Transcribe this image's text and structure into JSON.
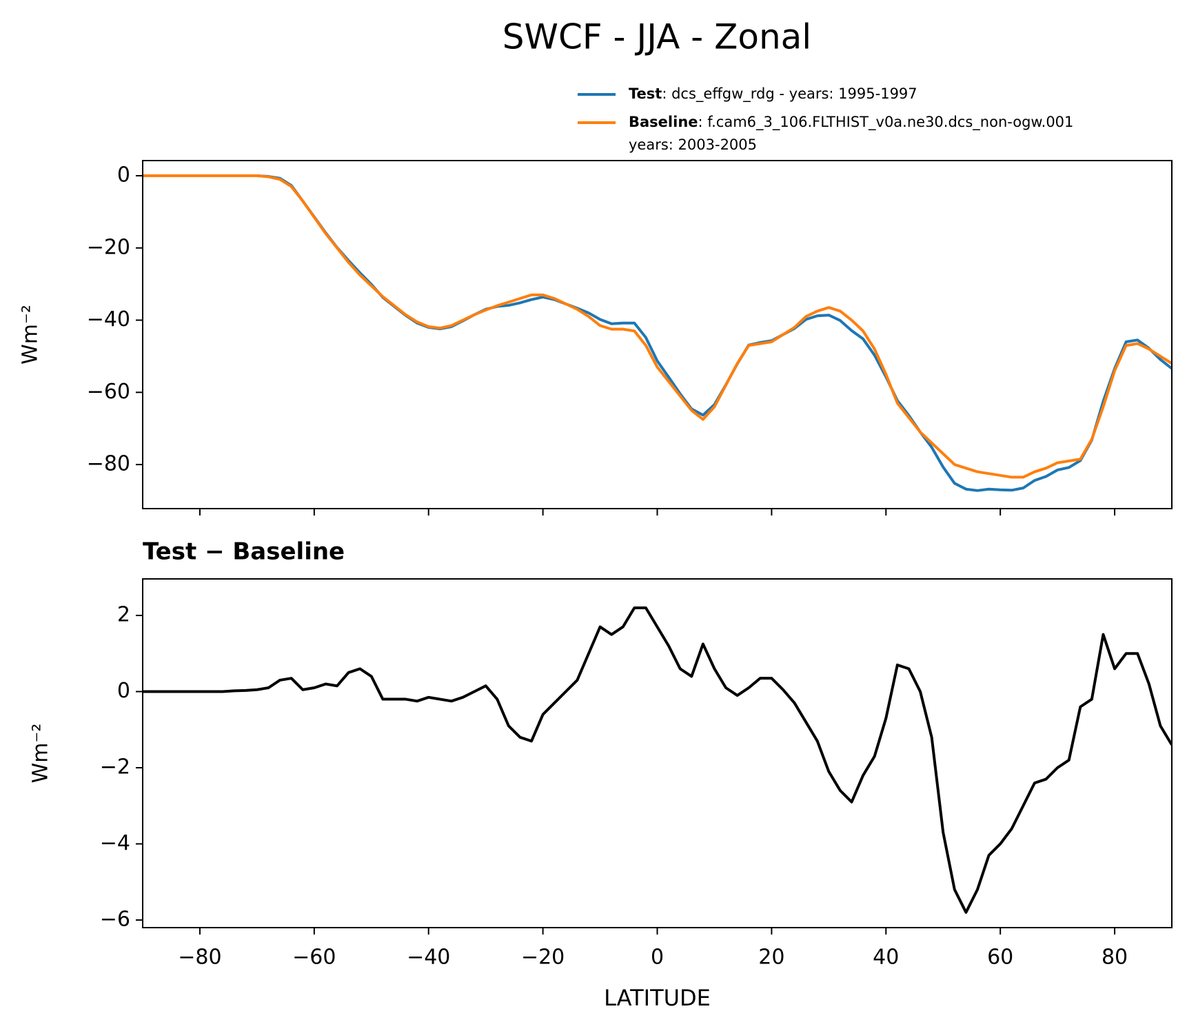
{
  "title": "SWCF - JJA - Zonal",
  "chart_data": [
    {
      "type": "line",
      "ylabel": "Wm⁻²",
      "x": [
        -90,
        -88,
        -86,
        -84,
        -82,
        -80,
        -78,
        -76,
        -74,
        -72,
        -70,
        -68,
        -66,
        -64,
        -62,
        -60,
        -58,
        -56,
        -54,
        -52,
        -50,
        -48,
        -46,
        -44,
        -42,
        -40,
        -38,
        -36,
        -34,
        -32,
        -30,
        -28,
        -26,
        -24,
        -22,
        -20,
        -18,
        -16,
        -14,
        -12,
        -10,
        -8,
        -6,
        -4,
        -2,
        0,
        2,
        4,
        6,
        8,
        10,
        12,
        14,
        16,
        18,
        20,
        22,
        24,
        26,
        28,
        30,
        32,
        34,
        36,
        38,
        40,
        42,
        44,
        46,
        48,
        50,
        52,
        54,
        56,
        58,
        60,
        62,
        64,
        66,
        68,
        70,
        72,
        74,
        76,
        78,
        80,
        82,
        84,
        86,
        88,
        90
      ],
      "series": [
        {
          "name": "Test",
          "description": [
            ": dcs_effgw_rdg - years: 1995-1997"
          ],
          "color": "#1f77b4",
          "values": [
            0,
            0,
            0,
            0,
            0,
            0,
            0,
            0,
            0,
            0,
            0,
            -0.2,
            -0.7,
            -2.7,
            -7,
            -11.4,
            -15.8,
            -19.9,
            -23.5,
            -26.9,
            -30.1,
            -33.7,
            -36.2,
            -38.7,
            -40.8,
            -42,
            -42.4,
            -41.8,
            -40.2,
            -38.5,
            -37,
            -36.2,
            -35.9,
            -35.2,
            -34.3,
            -33.6,
            -34.3,
            -35.5,
            -36.7,
            -38,
            -39.8,
            -41,
            -40.8,
            -40.8,
            -44.8,
            -51.3,
            -55.8,
            -60.4,
            -64.6,
            -66.3,
            -63.4,
            -57.9,
            -52.1,
            -46.9,
            -46.2,
            -45.7,
            -44,
            -42.3,
            -39.8,
            -38.8,
            -38.6,
            -40.1,
            -42.9,
            -45.2,
            -49.7,
            -55.7,
            -62.3,
            -66.4,
            -71,
            -75.2,
            -80.7,
            -85.2,
            -86.8,
            -87.2,
            -86.8,
            -87,
            -87.1,
            -86.5,
            -84.4,
            -83.3,
            -81.5,
            -80.8,
            -78.9,
            -73.2,
            -62.5,
            -53.4,
            -46,
            -45.5,
            -47.8,
            -50.9,
            -53.4
          ]
        },
        {
          "name": "Baseline",
          "description": [
            ": f.cam6_3_106.FLTHIST_v0a.ne30.dcs_non-ogw.001",
            "years: 2003-2005"
          ],
          "color": "#ff7f0e",
          "values": [
            0,
            0,
            0,
            0,
            0,
            0,
            0,
            0,
            0,
            0,
            0,
            -0.3,
            -1,
            -3,
            -7,
            -11.5,
            -16,
            -20,
            -24,
            -27.5,
            -30.5,
            -33.5,
            -36,
            -38.5,
            -40.5,
            -41.8,
            -42.2,
            -41.5,
            -40,
            -38.5,
            -37.2,
            -36,
            -35,
            -34,
            -33,
            -33,
            -34,
            -35.5,
            -37,
            -39,
            -41.5,
            -42.5,
            -42.5,
            -43,
            -47,
            -53,
            -57,
            -61,
            -65,
            -67.5,
            -64,
            -58,
            -52,
            -47,
            -46.5,
            -46,
            -44,
            -42,
            -39,
            -37.5,
            -36.5,
            -37.5,
            -40,
            -43,
            -48,
            -55,
            -63,
            -67,
            -71,
            -74,
            -77,
            -80,
            -81,
            -82,
            -82.5,
            -83,
            -83.5,
            -83.5,
            -82,
            -81,
            -79.5,
            -79,
            -78.5,
            -73,
            -64,
            -54,
            -47,
            -46.5,
            -48,
            -50,
            -52
          ]
        }
      ],
      "xlim": [
        -90,
        90
      ],
      "xticks": [
        -80,
        -60,
        -40,
        -20,
        0,
        20,
        40,
        60,
        80
      ],
      "show_xticklabels": false,
      "ylim": [
        -92.2,
        4.2
      ],
      "yticks": [
        0,
        {
          "value": -20,
          "label": "−20"
        },
        {
          "value": -40,
          "label": "−40"
        },
        {
          "value": -60,
          "label": "−60"
        },
        {
          "value": -80,
          "label": "−80"
        }
      ]
    },
    {
      "type": "line",
      "title": "Test − Baseline",
      "xlabel": "LATITUDE",
      "ylabel": "Wm⁻²",
      "x": [
        -90,
        -88,
        -86,
        -84,
        -82,
        -80,
        -78,
        -76,
        -74,
        -72,
        -70,
        -68,
        -66,
        -64,
        -62,
        -60,
        -58,
        -56,
        -54,
        -52,
        -50,
        -48,
        -46,
        -44,
        -42,
        -40,
        -38,
        -36,
        -34,
        -32,
        -30,
        -28,
        -26,
        -24,
        -22,
        -20,
        -18,
        -16,
        -14,
        -12,
        -10,
        -8,
        -6,
        -4,
        -2,
        0,
        2,
        4,
        6,
        8,
        10,
        12,
        14,
        16,
        18,
        20,
        22,
        24,
        26,
        28,
        30,
        32,
        34,
        36,
        38,
        40,
        42,
        44,
        46,
        48,
        50,
        52,
        54,
        56,
        58,
        60,
        62,
        64,
        66,
        68,
        70,
        72,
        74,
        76,
        78,
        80,
        82,
        84,
        86,
        88,
        90
      ],
      "series": [
        {
          "color": "#000000",
          "values": [
            0,
            0,
            0,
            0,
            0,
            0,
            0,
            0,
            0.02,
            0.03,
            0.05,
            0.1,
            0.3,
            0.35,
            0.05,
            0.1,
            0.2,
            0.15,
            0.5,
            0.6,
            0.4,
            -0.2,
            -0.2,
            -0.2,
            -0.25,
            -0.15,
            -0.2,
            -0.25,
            -0.15,
            0,
            0.15,
            -0.2,
            -0.9,
            -1.2,
            -1.3,
            -0.6,
            -0.3,
            0,
            0.3,
            1.0,
            1.7,
            1.5,
            1.7,
            2.2,
            2.2,
            1.7,
            1.2,
            0.6,
            0.4,
            1.25,
            0.6,
            0.1,
            -0.1,
            0.1,
            0.35,
            0.35,
            0.05,
            -0.3,
            -0.8,
            -1.3,
            -2.1,
            -2.6,
            -2.9,
            -2.2,
            -1.7,
            -0.7,
            0.7,
            0.6,
            0,
            -1.2,
            -3.7,
            -5.2,
            -5.8,
            -5.2,
            -4.3,
            -4.0,
            -3.6,
            -3.0,
            -2.4,
            -2.3,
            -2.0,
            -1.8,
            -0.4,
            -0.2,
            1.5,
            0.6,
            1.0,
            1.0,
            0.2,
            -0.9,
            -1.4
          ]
        }
      ],
      "xlim": [
        -90,
        90
      ],
      "xticks": [
        {
          "value": -80,
          "label": "−80"
        },
        {
          "value": -60,
          "label": "−60"
        },
        {
          "value": -40,
          "label": "−40"
        },
        {
          "value": -20,
          "label": "−20"
        },
        0,
        20,
        40,
        60,
        80
      ],
      "show_xticklabels": true,
      "ylim": [
        -6.2,
        2.96
      ],
      "yticks": [
        2,
        0,
        {
          "value": -2,
          "label": "−2"
        },
        {
          "value": -4,
          "label": "−4"
        },
        {
          "value": -6,
          "label": "−6"
        }
      ]
    }
  ]
}
